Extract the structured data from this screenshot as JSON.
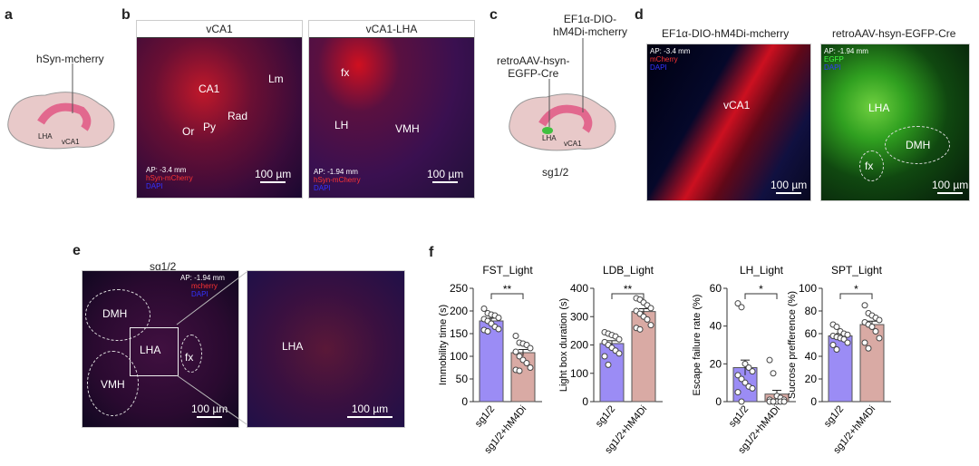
{
  "panels": {
    "a": "a",
    "b": "b",
    "c": "c",
    "d": "d",
    "e": "e",
    "f": "f"
  },
  "a": {
    "construct": "hSyn-mcherry",
    "lha": "LHA",
    "vca1": "vCA1"
  },
  "b": {
    "img1": {
      "title": "vCA1",
      "labels": [
        "CA1",
        "Rad",
        "Lm",
        "Or",
        "Py"
      ],
      "ap": "AP: -3.4 mm",
      "ch1": "hSyn-mCherry",
      "ch2": "DAPI",
      "scale": "100 µm"
    },
    "img2": {
      "title": "vCA1-LHA",
      "labels": [
        "fx",
        "LH",
        "VMH"
      ],
      "ap": "AP: -1.94 mm",
      "ch1": "hSyn-mCherry",
      "ch2": "DAPI",
      "scale": "100 µm"
    }
  },
  "c": {
    "construct1_l1": "EF1α-DIO-",
    "construct1_l2": "hM4Di-mcherry",
    "construct2_l1": "retroAAV-hsyn-",
    "construct2_l2": "EGFP-Cre",
    "lha": "LHA",
    "vca1": "vCA1",
    "group": "sg1/2"
  },
  "d": {
    "img1": {
      "title": "EF1α-DIO-hM4Di-mcherry",
      "ap": "AP: -3.4 mm",
      "ch1": "mCherry",
      "ch2": "DAPI",
      "label": "vCA1",
      "scale": "100 µm"
    },
    "img2": {
      "title": "retroAAV-hsyn-EGFP-Cre",
      "ap": "AP: -1.94 mm",
      "ch1": "EGFP",
      "ch2": "DAPI",
      "labels": [
        "LHA",
        "DMH",
        "fx"
      ],
      "scale": "100 µm"
    }
  },
  "e": {
    "group": "sg1/2",
    "img1": {
      "ap": "AP: -1.94 mm",
      "ch1": "mcherry",
      "ch2": "DAPI",
      "labels": [
        "DMH",
        "LHA",
        "fx",
        "VMH"
      ],
      "scale": "100 µm"
    },
    "img2": {
      "label": "LHA",
      "scale": "100 µm"
    }
  },
  "colors": {
    "bar1": "#9b8cf5",
    "bar2": "#d9aaa4"
  },
  "chart_data": [
    {
      "type": "bar",
      "title": "FST_Light",
      "ylabel": "Immobility time (s)",
      "categories": [
        "sg1/2",
        "sg1/2+hM4Di"
      ],
      "values": [
        178,
        108
      ],
      "sem": [
        6,
        7
      ],
      "ylim": [
        0,
        250
      ],
      "yticks": [
        0,
        50,
        100,
        150,
        200,
        250
      ],
      "significance": "**",
      "points": [
        [
          205,
          195,
          192,
          190,
          185,
          182,
          178,
          172,
          165,
          160,
          158,
          155
        ],
        [
          145,
          130,
          128,
          125,
          118,
          110,
          100,
          92,
          85,
          75,
          70,
          68
        ]
      ]
    },
    {
      "type": "bar",
      "title": "LDB_Light",
      "ylabel": "Light box duration (s)",
      "categories": [
        "sg1/2",
        "sg1/2+hM4Di"
      ],
      "values": [
        205,
        318
      ],
      "sem": [
        10,
        10
      ],
      "ylim": [
        0,
        400
      ],
      "yticks": [
        0,
        100,
        200,
        300,
        400
      ],
      "significance": "**",
      "points": [
        [
          245,
          240,
          235,
          230,
          220,
          210,
          200,
          190,
          180,
          170,
          160,
          130
        ],
        [
          365,
          360,
          350,
          340,
          330,
          320,
          310,
          300,
          290,
          270,
          260,
          255
        ]
      ]
    },
    {
      "type": "bar",
      "title": "LH_Light",
      "ylabel": "Escape failure rate (%)",
      "categories": [
        "sg1/2",
        "sg1/2+hM4Di"
      ],
      "values": [
        18,
        4
      ],
      "sem": [
        4,
        2
      ],
      "ylim": [
        0,
        60
      ],
      "yticks": [
        0,
        20,
        40,
        60
      ],
      "significance": "*",
      "points": [
        [
          52,
          50,
          20,
          18,
          16,
          14,
          12,
          10,
          8,
          7,
          5,
          0
        ],
        [
          22,
          15,
          3,
          2,
          1,
          1,
          0,
          0,
          0,
          0,
          0,
          0
        ]
      ]
    },
    {
      "type": "bar",
      "title": "SPT_Light",
      "ylabel": "Sucrose prefference (%)",
      "categories": [
        "sg1/2",
        "sg1/2+hM4Di"
      ],
      "values": [
        58,
        68
      ],
      "sem": [
        2,
        3
      ],
      "ylim": [
        0,
        100
      ],
      "yticks": [
        0,
        20,
        40,
        60,
        80,
        100
      ],
      "significance": "*",
      "points": [
        [
          68,
          66,
          62,
          60,
          59,
          58,
          57,
          56,
          55,
          52,
          50,
          46
        ],
        [
          85,
          78,
          76,
          74,
          72,
          70,
          68,
          66,
          62,
          56,
          52,
          47
        ]
      ]
    }
  ]
}
